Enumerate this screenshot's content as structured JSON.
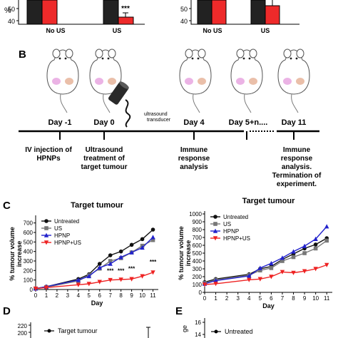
{
  "panel_a": {
    "charts": [
      {
        "categories": [
          "No US",
          "US"
        ],
        "series_colors": [
          "#222222",
          "#ee2a2a"
        ],
        "yticks": [
          "50",
          "40"
        ],
        "significance": "***",
        "ylabel_fragment": "%"
      },
      {
        "categories": [
          "No US",
          "US"
        ],
        "series_colors": [
          "#222222",
          "#ee2a2a"
        ],
        "yticks": [
          "50",
          "40"
        ]
      }
    ]
  },
  "panel_b": {
    "label": "B",
    "days": [
      "Day -1",
      "Day 0",
      "Day 4",
      "Day 5+n....",
      "Day 11"
    ],
    "transducer_label_1": "ultrasound",
    "transducer_label_2": "transducer",
    "events": [
      [
        "IV injection of",
        "HPNPs"
      ],
      [
        "Ultrasound",
        "treatment of",
        "target tumour"
      ],
      [
        "Immune",
        "response",
        "analysis"
      ],
      [
        "Immune",
        "response",
        "analysis.",
        "Termination of",
        "experiment."
      ]
    ]
  },
  "panel_c": {
    "label": "C",
    "chart_data": [
      {
        "type": "line",
        "title": "Target tumour",
        "xlabel": "Day",
        "ylabel": "% tumour volume increase",
        "x": [
          0,
          1,
          4,
          5,
          6,
          7,
          8,
          9,
          10,
          11
        ],
        "xticks": [
          "0",
          "1",
          "2",
          "3",
          "4",
          "5",
          "6",
          "7",
          "8",
          "9",
          "10",
          "11"
        ],
        "yticks": [
          "0",
          "100",
          "200",
          "300",
          "400",
          "500",
          "600",
          "700"
        ],
        "xlim": [
          0,
          11.5
        ],
        "ylim": [
          0,
          750
        ],
        "legend_position": "top-left",
        "significance_marks": [
          {
            "x": 7,
            "y": 175,
            "text": "***"
          },
          {
            "x": 8,
            "y": 175,
            "text": "***"
          },
          {
            "x": 9,
            "y": 200,
            "text": "***"
          },
          {
            "x": 11,
            "y": 270,
            "text": "***"
          }
        ],
        "series": [
          {
            "name": "Untreated",
            "color": "#111111",
            "marker": "circle",
            "values": [
              10,
              30,
              110,
              160,
              270,
              360,
              400,
              470,
              530,
              630
            ]
          },
          {
            "name": "US",
            "color": "#777777",
            "marker": "square",
            "values": [
              10,
              25,
              90,
              150,
              220,
              300,
              330,
              390,
              460,
              520
            ]
          },
          {
            "name": "HPNP",
            "color": "#2222cc",
            "marker": "triangle-up",
            "values": [
              10,
              30,
              100,
              140,
              230,
              270,
              340,
              390,
              440,
              550
            ]
          },
          {
            "name": "HPNP+US",
            "color": "#ee2222",
            "marker": "triangle-down",
            "values": [
              10,
              20,
              50,
              60,
              80,
              100,
              105,
              110,
              140,
              180
            ]
          }
        ]
      },
      {
        "type": "line",
        "title": "Target tumour",
        "xlabel": "Day",
        "ylabel": "% tumour volume increase",
        "x": [
          0,
          1,
          4,
          5,
          6,
          7,
          8,
          9,
          10,
          11
        ],
        "xticks": [
          "0",
          "1",
          "2",
          "3",
          "4",
          "5",
          "6",
          "7",
          "8",
          "9",
          "10",
          "11"
        ],
        "yticks": [
          "0",
          "100",
          "200",
          "300",
          "400",
          "500",
          "600",
          "700",
          "800",
          "900",
          "1000"
        ],
        "xlim": [
          0,
          11.5
        ],
        "ylim": [
          0,
          1000
        ],
        "legend_position": "top-left",
        "series": [
          {
            "name": "Untreated",
            "color": "#111111",
            "marker": "circle",
            "values": [
              130,
              170,
              230,
              300,
              330,
              420,
              490,
              560,
              610,
              690
            ]
          },
          {
            "name": "US",
            "color": "#777777",
            "marker": "square",
            "values": [
              120,
              160,
              220,
              280,
              310,
              400,
              450,
              500,
              560,
              660
            ]
          },
          {
            "name": "HPNP",
            "color": "#2222cc",
            "marker": "triangle-up",
            "values": [
              110,
              150,
              210,
              310,
              370,
              440,
              520,
              590,
              680,
              840
            ]
          },
          {
            "name": "HPNP+US",
            "color": "#ee2222",
            "marker": "triangle-down",
            "values": [
              100,
              110,
              160,
              170,
              200,
              260,
              250,
              270,
              300,
              350
            ]
          }
        ]
      }
    ]
  },
  "panel_d": {
    "label": "D",
    "yticks": [
      "220",
      "200"
    ],
    "legend_text": "Target tumour"
  },
  "panel_e": {
    "label": "E",
    "yticks": [
      "16",
      "14"
    ],
    "ylabel_fragment": "ge",
    "legend_text": "Untreated"
  }
}
